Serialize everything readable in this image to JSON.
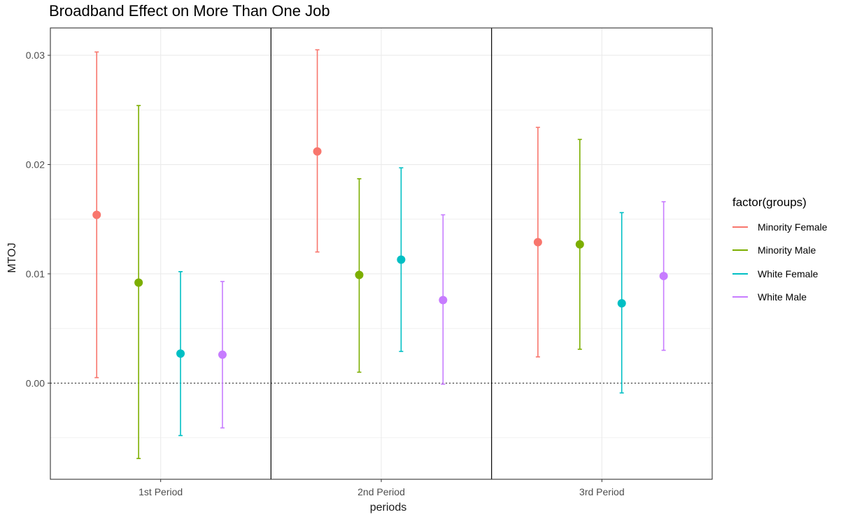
{
  "chart_data": {
    "type": "errorbar",
    "title": "Broadband Effect on More Than One Job",
    "xlabel": "periods",
    "ylabel": "MTOJ",
    "categories": [
      "1st Period",
      "2nd Period",
      "3rd Period"
    ],
    "ylim": [
      -0.0088,
      0.0325
    ],
    "yticks": [
      0.0,
      0.01,
      0.02,
      0.03
    ],
    "ytick_labels": [
      "0.00",
      "0.01",
      "0.02",
      "0.03"
    ],
    "reference_line": 0,
    "grid": true,
    "legend": {
      "title": "factor(groups)",
      "position": "right"
    },
    "series": [
      {
        "name": "Minority Female",
        "color": "#F8766D",
        "values": [
          0.0154,
          0.0212,
          0.0129
        ],
        "lower": [
          0.0005,
          0.012,
          0.0024
        ],
        "upper": [
          0.0303,
          0.0305,
          0.0234
        ]
      },
      {
        "name": "Minority Male",
        "color": "#7CAE00",
        "values": [
          0.0092,
          0.0099,
          0.0127
        ],
        "lower": [
          -0.0069,
          0.001,
          0.0031
        ],
        "upper": [
          0.0254,
          0.0187,
          0.0223
        ]
      },
      {
        "name": "White Female",
        "color": "#00BFC4",
        "values": [
          0.0027,
          0.0113,
          0.0073
        ],
        "lower": [
          -0.0048,
          0.0029,
          -0.0009
        ],
        "upper": [
          0.0102,
          0.0197,
          0.0156
        ]
      },
      {
        "name": "White Male",
        "color": "#C77CFF",
        "values": [
          0.0026,
          0.0076,
          0.0098
        ],
        "lower": [
          -0.0041,
          -0.0001,
          0.003
        ],
        "upper": [
          0.0093,
          0.0154,
          0.0166
        ]
      }
    ]
  }
}
